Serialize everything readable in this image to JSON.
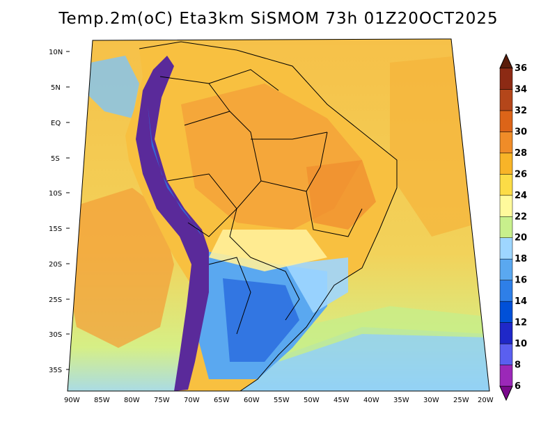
{
  "title": "Temp.2m(oC) Eta3km SiSMOM 73h 01Z20OCT2025",
  "lat_ticks": [
    "10N",
    "5N",
    "EQ",
    "5S",
    "10S",
    "15S",
    "20S",
    "25S",
    "30S",
    "35S"
  ],
  "lon_ticks": [
    "90W",
    "85W",
    "80W",
    "75W",
    "70W",
    "65W",
    "60W",
    "55W",
    "50W",
    "45W",
    "40W",
    "35W",
    "30W",
    "25W",
    "20W"
  ],
  "colorbar": {
    "labels": [
      "6",
      "8",
      "10",
      "12",
      "14",
      "16",
      "18",
      "20",
      "22",
      "24",
      "26",
      "28",
      "30",
      "32",
      "34",
      "36"
    ],
    "colors": [
      "#7a0a8c",
      "#9b28b8",
      "#5a5ff0",
      "#1f28c8",
      "#0050d8",
      "#2e7fe8",
      "#5aa8f0",
      "#9ed6ff",
      "#c8f08c",
      "#fffa9c",
      "#fcdc46",
      "#f8b428",
      "#f08c28",
      "#dc6418",
      "#b4461a",
      "#8c2a14",
      "#5a1c0a"
    ]
  },
  "palette": {
    "ocean_warm": "#f6b43c",
    "ocean_mid": "#f2d85a",
    "ocean_cool": "#c7ee8a",
    "cold_water": "#8fd0f8",
    "land_hot": "#f4a83a",
    "land_warm": "#f8c840",
    "andes": "#5a2a9a",
    "south_cool": "#3a78e0",
    "border": "#000000"
  }
}
